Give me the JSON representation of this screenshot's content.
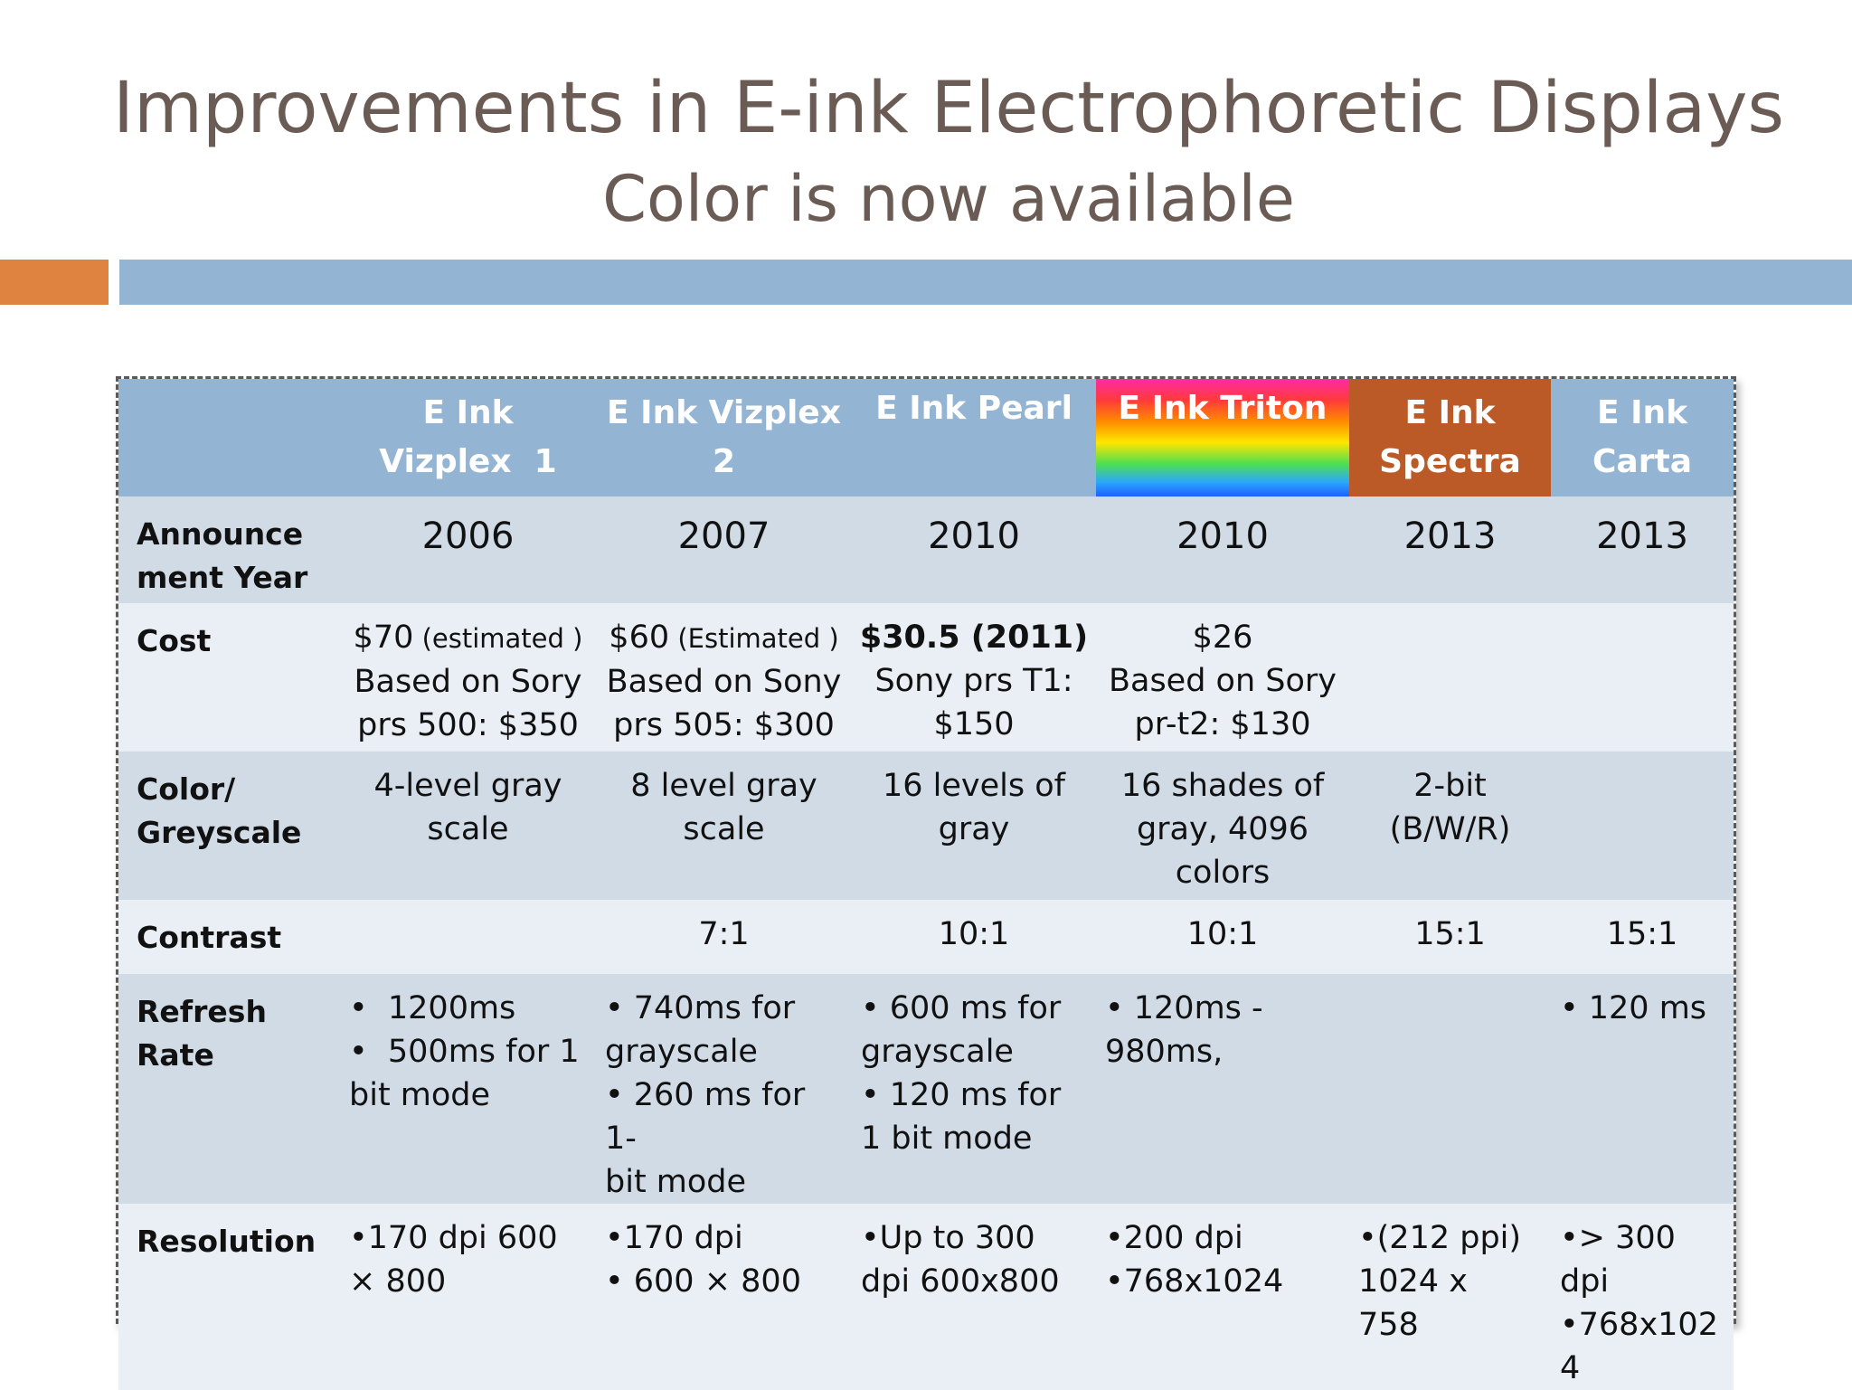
{
  "slide": {
    "title": "Improvements in E-ink Electrophoretic Displays",
    "subtitle": "Color is now available"
  },
  "colors": {
    "title_text": "#6b5b55",
    "accent_orange": "#df8341",
    "accent_blue": "#94b4d3",
    "spectra_header": "#bb5a26",
    "row_dark": "#d0dbe6",
    "row_light": "#eaeff5"
  },
  "table": {
    "headers": [
      "E Ink Vizplex 1",
      "E Ink Vizplex 2",
      "E Ink Pearl",
      "E Ink Triton",
      "E Ink Spectra",
      "E Ink Carta"
    ],
    "header_lines": [
      [
        "E Ink",
        "Vizplex  1"
      ],
      [
        "E Ink Vizplex",
        "2"
      ],
      [
        "E Ink Pearl"
      ],
      [
        "E Ink Triton"
      ],
      [
        "E Ink",
        "Spectra"
      ],
      [
        "E Ink",
        "Carta"
      ]
    ],
    "rows": {
      "announcement": {
        "label": [
          "Announce",
          "ment Year"
        ],
        "cells": [
          "2006",
          "2007",
          "2010",
          "2010",
          "2013",
          "2013"
        ]
      },
      "cost": {
        "label": "Cost",
        "vizplex1": {
          "price": "$70",
          "note": " (estimated )",
          "l2": "Based on Sory",
          "l3": "prs 500: $350"
        },
        "vizplex2": {
          "price": "$60",
          "note": " (Estimated )",
          "l2": "Based on Sony",
          "l3": "prs 505: $300"
        },
        "pearl": {
          "l1": "$30.5 (2011)",
          "l2": "Sony prs T1:",
          "l3": "$150"
        },
        "triton": {
          "l1": "$26",
          "l2": "Based on Sory",
          "l3": "pr-t2: $130"
        },
        "spectra": "",
        "carta": ""
      },
      "color": {
        "label": [
          "Color/",
          "Greyscale"
        ],
        "cells": [
          [
            "4-level gray",
            "scale"
          ],
          [
            "8 level gray",
            "scale"
          ],
          [
            "16 levels of",
            "gray"
          ],
          [
            "16 shades of",
            "gray, 4096",
            "colors"
          ],
          [
            "2-bit",
            "(B/W/R)"
          ],
          []
        ]
      },
      "contrast": {
        "label": "Contrast",
        "cells": [
          "",
          "7:1",
          "10:1",
          "10:1",
          "15:1",
          "15:1"
        ]
      },
      "refresh": {
        "label": [
          "Refresh",
          "Rate"
        ],
        "cells": [
          [
            "•  1200ms",
            "•  500ms for 1",
            "bit mode"
          ],
          [
            "• 740ms for",
            "grayscale",
            "• 260 ms for 1-",
            "bit mode"
          ],
          [
            "• 600 ms for",
            "grayscale",
            "• 120 ms for",
            "1 bit mode"
          ],
          [
            "• 120ms -",
            "980ms,"
          ],
          [],
          [
            "• 120 ms"
          ]
        ]
      },
      "resolution": {
        "label": "Resolution",
        "cells": [
          [
            "•170 dpi 600",
            "× 800"
          ],
          [
            "•170 dpi",
            "• 600 × 800"
          ],
          [
            "•Up to 300",
            "dpi 600x800"
          ],
          [
            "•200 dpi",
            "•768x1024"
          ],
          [
            "•(212 ppi)",
            "1024 x",
            "758"
          ],
          [
            "•> 300 dpi",
            "•768x102",
            "4"
          ]
        ]
      }
    }
  }
}
